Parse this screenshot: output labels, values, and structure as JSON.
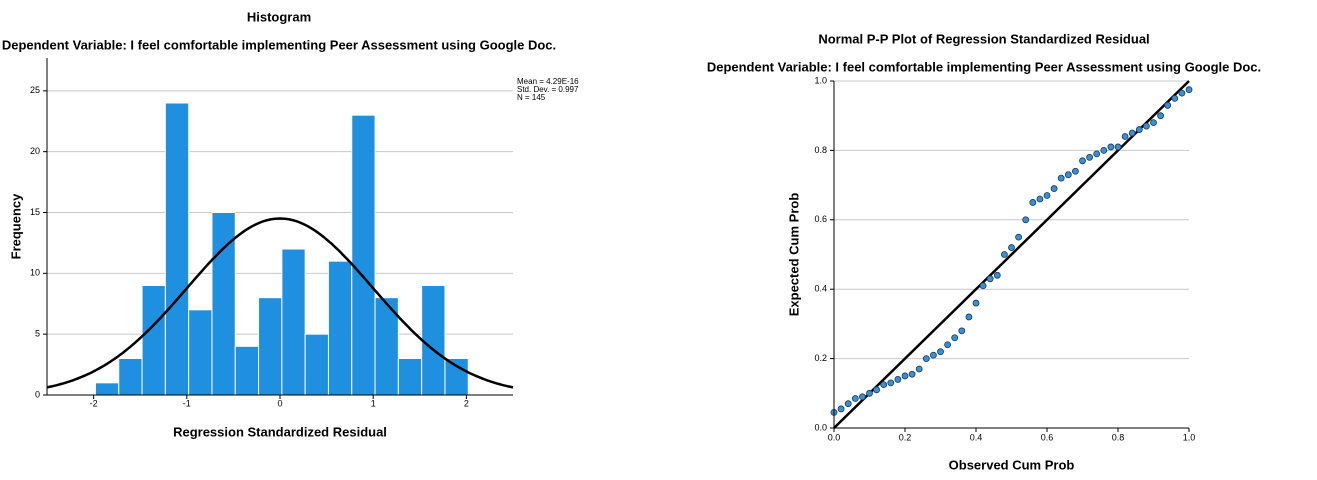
{
  "chart_data": [
    {
      "type": "histogram",
      "title": "Histogram",
      "subtitle": "Dependent Variable: I feel comfortable implementing Peer Assessment using Google Doc.",
      "xlabel": "Regression Standardized Residual",
      "ylabel": "Frequency",
      "bins": [
        -1.98,
        -1.73,
        -1.48,
        -1.23,
        -0.98,
        -0.73,
        -0.48,
        -0.23,
        0.02,
        0.27,
        0.52,
        0.77,
        1.02,
        1.27,
        1.52,
        1.77,
        2.02
      ],
      "values": [
        1,
        3,
        9,
        24,
        7,
        15,
        4,
        8,
        12,
        5,
        11,
        23,
        8,
        3,
        9,
        3
      ],
      "color": "#1f8fe0",
      "curve_color": "#000000",
      "stats": {
        "mean": {
          "value": 4.29e-16,
          "label": "Mean = 4.29E-16"
        },
        "sd": {
          "value": 0.997,
          "label": "Std. Dev. = 0.997"
        },
        "n": {
          "value": 145,
          "label": "N = 145"
        }
      },
      "xlim": [
        -2.5,
        2.5
      ],
      "xticks": [
        -2,
        -1,
        0,
        1,
        2
      ],
      "ylim": [
        0,
        27.7
      ],
      "yticks": [
        0,
        5,
        10,
        15,
        20,
        25
      ],
      "grid": true
    },
    {
      "type": "scatter",
      "title": "Normal P-P Plot of Regression Standardized Residual",
      "subtitle": "Dependent Variable: I feel comfortable implementing Peer Assessment using Google Doc.",
      "xlabel": "Observed Cum Prob",
      "ylabel": "Expected Cum Prob",
      "x": [
        0.0,
        0.02,
        0.04,
        0.06,
        0.08,
        0.1,
        0.12,
        0.14,
        0.16,
        0.18,
        0.2,
        0.22,
        0.24,
        0.26,
        0.28,
        0.3,
        0.32,
        0.34,
        0.36,
        0.38,
        0.4,
        0.42,
        0.44,
        0.46,
        0.48,
        0.5,
        0.52,
        0.54,
        0.56,
        0.58,
        0.6,
        0.62,
        0.64,
        0.66,
        0.68,
        0.7,
        0.72,
        0.74,
        0.76,
        0.78,
        0.8,
        0.82,
        0.84,
        0.86,
        0.88,
        0.9,
        0.92,
        0.94,
        0.96,
        0.98,
        1.0
      ],
      "values": [
        0.045,
        0.055,
        0.07,
        0.085,
        0.09,
        0.1,
        0.11,
        0.125,
        0.13,
        0.14,
        0.15,
        0.155,
        0.17,
        0.2,
        0.21,
        0.22,
        0.24,
        0.26,
        0.28,
        0.32,
        0.36,
        0.41,
        0.43,
        0.44,
        0.5,
        0.52,
        0.55,
        0.6,
        0.65,
        0.66,
        0.67,
        0.69,
        0.72,
        0.73,
        0.74,
        0.77,
        0.78,
        0.79,
        0.8,
        0.81,
        0.81,
        0.84,
        0.85,
        0.86,
        0.87,
        0.88,
        0.9,
        0.93,
        0.95,
        0.965,
        0.975
      ],
      "color": "#3a8fd0",
      "reference_line": true,
      "xlim": [
        0,
        1
      ],
      "xticks": [
        {
          "value": 0,
          "label": "0.0"
        },
        {
          "value": 0.2,
          "label": "0.2"
        },
        {
          "value": 0.4,
          "label": "0.4"
        },
        {
          "value": 0.6,
          "label": "0.6"
        },
        {
          "value": 0.8,
          "label": "0.8"
        },
        {
          "value": 1,
          "label": "1.0"
        }
      ],
      "ylim": [
        0,
        1
      ],
      "yticks": [
        {
          "value": 0,
          "label": "0.0"
        },
        {
          "value": 0.2,
          "label": "0.2"
        },
        {
          "value": 0.4,
          "label": "0.4"
        },
        {
          "value": 0.6,
          "label": "0.6"
        },
        {
          "value": 0.8,
          "label": "0.8"
        },
        {
          "value": 1,
          "label": "1.0"
        }
      ],
      "grid": true
    }
  ]
}
